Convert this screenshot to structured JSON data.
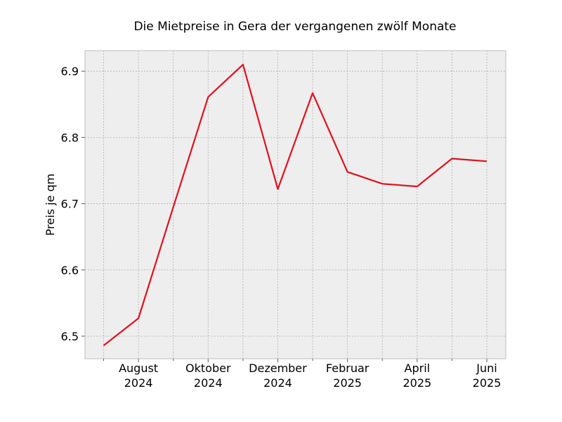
{
  "chart_data": {
    "type": "line",
    "title": "Die Mietpreise in Gera der vergangenen zwölf Monate",
    "xlabel": "",
    "ylabel": "Preis je qm",
    "x": [
      "2024-07",
      "2024-08",
      "2024-09",
      "2024-10",
      "2024-11",
      "2024-12",
      "2025-01",
      "2025-02",
      "2025-03",
      "2025-04",
      "2025-05",
      "2025-06"
    ],
    "series": [
      {
        "values": [
          6.486,
          6.527,
          6.695,
          6.861,
          6.91,
          6.722,
          6.867,
          6.748,
          6.73,
          6.726,
          6.768,
          6.764
        ],
        "color": "#e0101e"
      }
    ],
    "ylim": [
      6.466,
      6.931
    ],
    "yticks": [
      6.5,
      6.6,
      6.7,
      6.8,
      6.9
    ],
    "ytick_labels": [
      "6.5",
      "6.6",
      "6.7",
      "6.8",
      "6.9"
    ],
    "xticks_major": [
      {
        "x": "2024-08",
        "label_line1": "August",
        "label_line2": "2024"
      },
      {
        "x": "2024-10",
        "label_line1": "Oktober",
        "label_line2": "2024"
      },
      {
        "x": "2024-12",
        "label_line1": "Dezember",
        "label_line2": "2024"
      },
      {
        "x": "2025-02",
        "label_line1": "Februar",
        "label_line2": "2025"
      },
      {
        "x": "2025-04",
        "label_line1": "April",
        "label_line2": "2025"
      },
      {
        "x": "2025-06",
        "label_line1": "Juni",
        "label_line2": "2025"
      }
    ],
    "xticks_minor": [
      "2024-07",
      "2024-09",
      "2024-11",
      "2025-01",
      "2025-03",
      "2025-05"
    ],
    "grid": true,
    "style": {
      "plot_background": "#eeeeee",
      "grid_color": "#b0b0b0",
      "spine_color": "#bcbcbc"
    }
  }
}
